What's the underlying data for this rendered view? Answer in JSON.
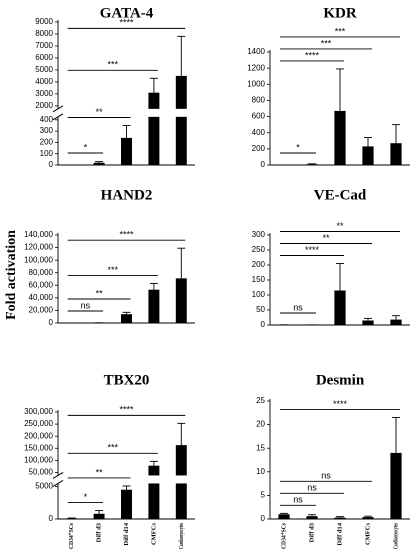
{
  "y_label": "Fold activation",
  "chart_data": [
    {
      "type": "bar",
      "title": "GATA-4",
      "color": "#000000",
      "values": [
        0,
        20,
        240,
        3100,
        4500
      ],
      "errors": [
        0,
        10,
        110,
        1200,
        3300
      ],
      "y_segments": [
        {
          "ylim": [
            0,
            400
          ],
          "yticks": [
            0,
            100,
            200,
            300,
            400
          ]
        },
        {
          "ylim": [
            2000,
            9000
          ],
          "yticks": [
            2000,
            3000,
            4000,
            5000,
            6000,
            7000,
            8000,
            9000
          ]
        }
      ],
      "brackets": [
        {
          "label": "*",
          "to": 1
        },
        {
          "label": "**",
          "to": 2
        },
        {
          "label": "***",
          "to": 3
        },
        {
          "label": "****",
          "to": 4
        }
      ]
    },
    {
      "type": "bar",
      "title": "KDR",
      "color": "#000000",
      "values": [
        0,
        10,
        670,
        230,
        270
      ],
      "errors": [
        0,
        5,
        520,
        110,
        230
      ],
      "ylim": [
        0,
        1400
      ],
      "yticks": [
        0,
        200,
        400,
        600,
        800,
        1000,
        1200,
        1400
      ],
      "brackets": [
        {
          "label": "*",
          "to": 1
        },
        {
          "label": "****",
          "to": 2
        },
        {
          "label": "***",
          "to": 3
        },
        {
          "label": "***",
          "to": 4
        }
      ]
    },
    {
      "type": "bar",
      "title": "HAND2",
      "color": "#000000",
      "values": [
        0,
        300,
        14000,
        53000,
        71000
      ],
      "errors": [
        0,
        100,
        3000,
        10000,
        48000
      ],
      "ylim": [
        0,
        140000
      ],
      "yticks": [
        0,
        {
          "value": 20000,
          "label": "20,000"
        },
        {
          "value": 40000,
          "label": "40,000"
        },
        {
          "value": 60000,
          "label": "60,000"
        },
        {
          "value": 80000,
          "label": "80,000"
        },
        {
          "value": 100000,
          "label": "100,000"
        },
        {
          "value": 120000,
          "label": "120,000"
        },
        {
          "value": 140000,
          "label": "140,000"
        }
      ],
      "brackets": [
        {
          "label": "ns",
          "to": 1
        },
        {
          "label": "**",
          "to": 2
        },
        {
          "label": "***",
          "to": 3
        },
        {
          "label": "****",
          "to": 4
        }
      ]
    },
    {
      "type": "bar",
      "title": "VE-Cad",
      "color": "#000000",
      "values": [
        0.5,
        0.3,
        115,
        15,
        18
      ],
      "errors": [
        0.2,
        0.2,
        90,
        7,
        13
      ],
      "ylim": [
        0,
        300
      ],
      "yticks": [
        0,
        50,
        100,
        150,
        200,
        250,
        300
      ],
      "brackets": [
        {
          "label": "ns",
          "to": 1
        },
        {
          "label": "****",
          "to": 2
        },
        {
          "label": "**",
          "to": 3
        },
        {
          "label": "**",
          "to": 4
        }
      ]
    },
    {
      "type": "bar",
      "title": "TBX20",
      "color": "#000000",
      "categories": [
        "CD34⁺SCs",
        "Diff d3",
        "Diff d14",
        "CMFCs",
        "Cardiomyocytes"
      ],
      "values": [
        100,
        800,
        4500,
        78000,
        163000
      ],
      "errors": [
        50,
        500,
        2000,
        18000,
        90000
      ],
      "y_segments": [
        {
          "ylim": [
            0,
            5000
          ],
          "yticks": [
            0,
            5000
          ]
        },
        {
          "ylim": [
            50000,
            300000
          ],
          "yticks": [
            {
              "value": 50000,
              "label": "50,000"
            },
            {
              "value": 100000,
              "label": "100,000"
            },
            {
              "value": 150000,
              "label": "150,000"
            },
            {
              "value": 200000,
              "label": "200,000"
            },
            {
              "value": 250000,
              "label": "250,000"
            },
            {
              "value": 300000,
              "label": "300,000"
            }
          ]
        }
      ],
      "brackets": [
        {
          "label": "*",
          "to": 1
        },
        {
          "label": "**",
          "to": 2
        },
        {
          "label": "***",
          "to": 3
        },
        {
          "label": "****",
          "to": 4
        }
      ]
    },
    {
      "type": "bar",
      "title": "Desmin",
      "color": "#000000",
      "categories": [
        "CD34⁺SCs",
        "Diff d3",
        "Diff d14",
        "CMFCs",
        "Cardiomyocytes"
      ],
      "values": [
        1,
        0.6,
        0.3,
        0.4,
        14
      ],
      "errors": [
        0.2,
        0.3,
        0.2,
        0.2,
        7.5
      ],
      "ylim": [
        0,
        25
      ],
      "yticks": [
        0,
        5,
        10,
        15,
        20,
        25
      ],
      "brackets": [
        {
          "label": "ns",
          "to": 1
        },
        {
          "label": "ns",
          "to": 2
        },
        {
          "label": "ns",
          "to": 3
        },
        {
          "label": "****",
          "to": 4
        }
      ]
    }
  ]
}
